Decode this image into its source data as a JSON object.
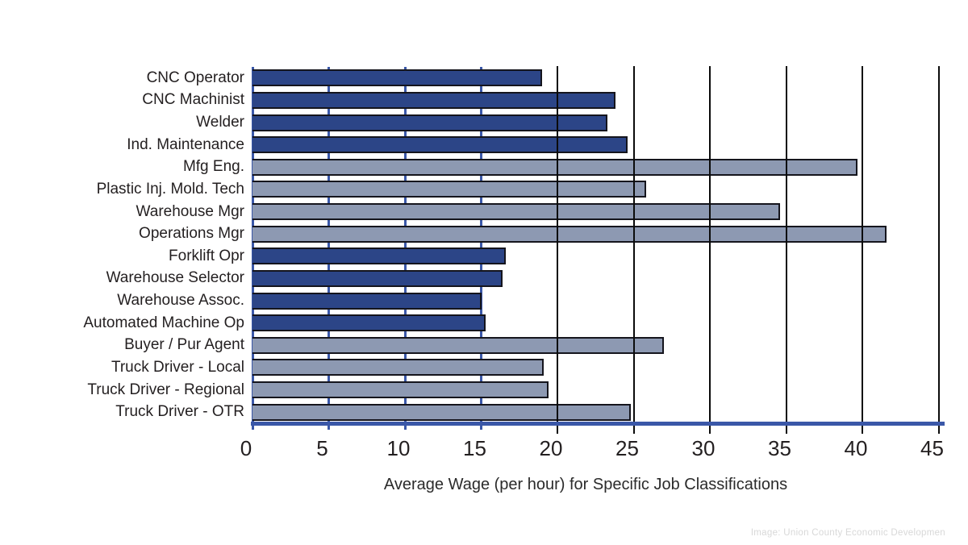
{
  "chart_data": {
    "type": "bar",
    "orientation": "horizontal",
    "title": "",
    "xlabel": "Average Wage (per hour) for Specific Job Classifications",
    "ylabel": "",
    "xlim": [
      0,
      45
    ],
    "x_ticks": [
      0,
      5,
      10,
      15,
      20,
      25,
      30,
      35,
      40,
      45
    ],
    "blue_gridlines": [
      0,
      5,
      10,
      15
    ],
    "black_gridlines": [
      20,
      25,
      30,
      35,
      40,
      45
    ],
    "legend": "none",
    "categories": [
      "CNC Operator",
      "CNC Machinist",
      "Welder",
      "Ind. Maintenance",
      "Mfg Eng.",
      "Plastic Inj. Mold. Tech",
      "Warehouse Mgr",
      "Operations Mgr",
      "Forklift Opr",
      "Warehouse Selector",
      "Warehouse Assoc.",
      "Automated Machine Op",
      "Buyer / Pur Agent",
      "Truck Driver - Local",
      "Truck Driver - Regional",
      "Truck Driver - OTR"
    ],
    "values": [
      19.0,
      23.8,
      23.3,
      24.6,
      39.7,
      25.8,
      34.6,
      41.6,
      16.6,
      16.4,
      15.0,
      15.3,
      27.0,
      19.1,
      19.4,
      24.8
    ],
    "bar_color_groups": [
      "navy",
      "navy",
      "navy",
      "navy",
      "light",
      "light",
      "light",
      "light",
      "navy",
      "navy",
      "navy",
      "navy",
      "light",
      "light",
      "light",
      "light"
    ]
  },
  "colors": {
    "bar_navy": "#2c4587",
    "bar_light": "#8d99b2",
    "bar_outline": "#15151d",
    "grid_blue": "#3a57a8",
    "grid_black": "#0b0b0b",
    "axis_line_blue": "#3a57a8",
    "text_dark": "#231f20",
    "credit_gray": "#d8d8d8"
  },
  "credit": "Image: Union County Economic Developmen"
}
